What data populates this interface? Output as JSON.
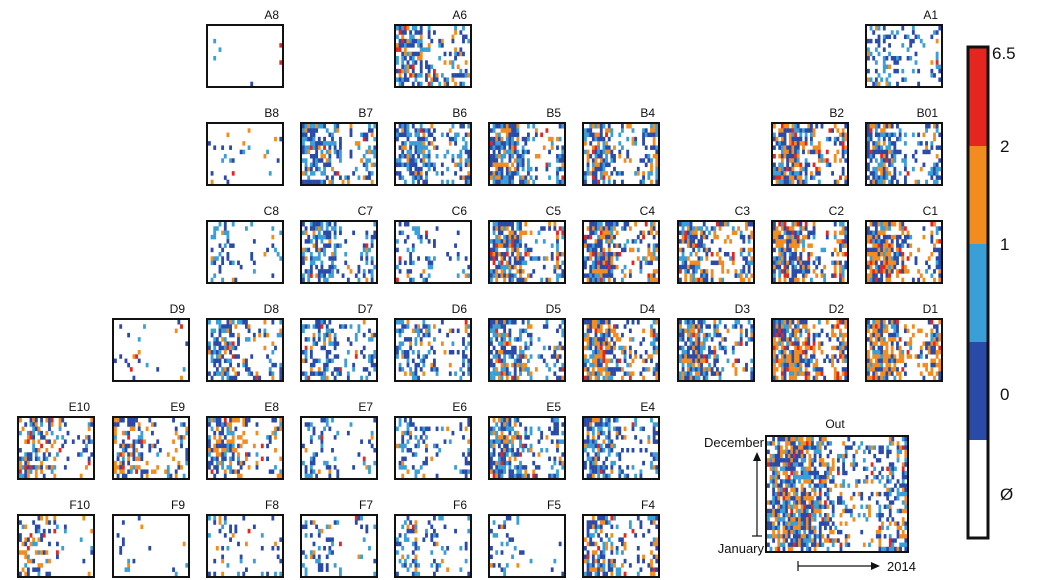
{
  "chart_data": {
    "type": "heatmap",
    "colors": {
      "empty": "#ffffff",
      "level0": "#2a4aa8",
      "level1": "#3a9fd6",
      "level2": "#f28c1e",
      "level3": "#e4261f",
      "frame": "#111111"
    },
    "colorbar": {
      "tick_labels": [
        "6.5",
        "2",
        "1",
        "0",
        "Ø"
      ]
    },
    "panels": [
      {
        "label": "A8",
        "density": 0.04,
        "hot": 0.4
      },
      {
        "label": "A6",
        "density": 0.7,
        "hot": 0.35
      },
      {
        "label": "A1",
        "density": 0.45,
        "hot": 0.1
      },
      {
        "label": "B8",
        "density": 0.08,
        "hot": 0.4
      },
      {
        "label": "B7",
        "density": 0.7,
        "hot": 0.2
      },
      {
        "label": "B6",
        "density": 0.72,
        "hot": 0.15
      },
      {
        "label": "B5",
        "density": 0.8,
        "hot": 0.35
      },
      {
        "label": "B4",
        "density": 0.82,
        "hot": 0.45
      },
      {
        "label": "B2",
        "density": 0.88,
        "hot": 0.6
      },
      {
        "label": "B01",
        "density": 0.75,
        "hot": 0.25
      },
      {
        "label": "C8",
        "density": 0.35,
        "hot": 0.15
      },
      {
        "label": "C7",
        "density": 0.62,
        "hot": 0.15
      },
      {
        "label": "C6",
        "density": 0.35,
        "hot": 0.1
      },
      {
        "label": "C5",
        "density": 0.82,
        "hot": 0.45
      },
      {
        "label": "C4",
        "density": 0.88,
        "hot": 0.55
      },
      {
        "label": "C3",
        "density": 0.8,
        "hot": 0.45
      },
      {
        "label": "C2",
        "density": 0.9,
        "hot": 0.6
      },
      {
        "label": "C1",
        "density": 0.92,
        "hot": 0.7
      },
      {
        "label": "D9",
        "density": 0.1,
        "hot": 0.3
      },
      {
        "label": "D8",
        "density": 0.62,
        "hot": 0.25
      },
      {
        "label": "D7",
        "density": 0.55,
        "hot": 0.15
      },
      {
        "label": "D6",
        "density": 0.55,
        "hot": 0.2
      },
      {
        "label": "D5",
        "density": 0.72,
        "hot": 0.25
      },
      {
        "label": "D4",
        "density": 0.85,
        "hot": 0.55
      },
      {
        "label": "D3",
        "density": 0.82,
        "hot": 0.4
      },
      {
        "label": "D2",
        "density": 0.92,
        "hot": 0.7
      },
      {
        "label": "D1",
        "density": 0.9,
        "hot": 0.75
      },
      {
        "label": "E10",
        "density": 0.55,
        "hot": 0.55
      },
      {
        "label": "E9",
        "density": 0.62,
        "hot": 0.55
      },
      {
        "label": "E8",
        "density": 0.65,
        "hot": 0.5
      },
      {
        "label": "E7",
        "density": 0.3,
        "hot": 0.15
      },
      {
        "label": "E6",
        "density": 0.45,
        "hot": 0.15
      },
      {
        "label": "E5",
        "density": 0.72,
        "hot": 0.25
      },
      {
        "label": "E4",
        "density": 0.72,
        "hot": 0.2
      },
      {
        "label": "F10",
        "density": 0.4,
        "hot": 0.5
      },
      {
        "label": "F9",
        "density": 0.1,
        "hot": 0.1
      },
      {
        "label": "F8",
        "density": 0.25,
        "hot": 0.3
      },
      {
        "label": "F7",
        "density": 0.25,
        "hot": 0.15
      },
      {
        "label": "F6",
        "density": 0.35,
        "hot": 0.15
      },
      {
        "label": "F5",
        "density": 0.12,
        "hot": 0.05
      },
      {
        "label": "F4",
        "density": 0.65,
        "hot": 0.45
      }
    ],
    "inset": {
      "label": "Out",
      "y_top_label": "December",
      "y_bottom_label": "January",
      "x_label": "2014",
      "density": 0.85,
      "hot": 0.4
    }
  }
}
